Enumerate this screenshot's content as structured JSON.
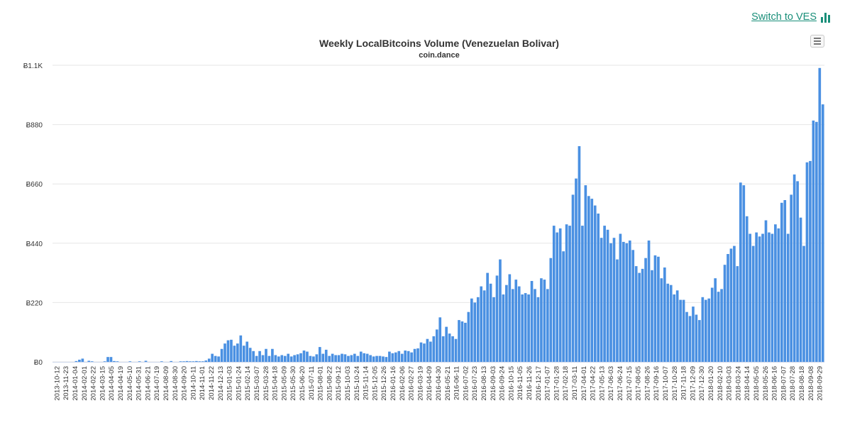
{
  "header": {
    "switch_label": "Switch to VES",
    "switch_icon": "bar-chart-icon",
    "accent": "#1a8f7a"
  },
  "menu": {
    "icon": "hamburger-menu-icon"
  },
  "chart_data": {
    "type": "bar",
    "title": "Weekly LocalBitcoins Volume (Venezuelan Bolivar)",
    "subtitle": "coin.dance",
    "bar_color": "#4a90e2",
    "grid": true,
    "ylim": [
      0,
      1100
    ],
    "yticks": [
      0,
      220,
      440,
      660,
      880,
      1100
    ],
    "ytick_labels": [
      "Ƀ0",
      "Ƀ220",
      "Ƀ440",
      "Ƀ660",
      "Ƀ880",
      "Ƀ1.1K"
    ],
    "xtick_labels": [
      "2013-10-12",
      "2013-11-23",
      "2014-01-04",
      "2014-02-01",
      "2014-02-22",
      "2014-03-15",
      "2014-04-05",
      "2014-04-19",
      "2014-05-10",
      "2014-05-31",
      "2014-06-21",
      "2014-07-19",
      "2014-08-09",
      "2014-08-30",
      "2014-09-20",
      "2014-10-11",
      "2014-11-01",
      "2014-11-22",
      "2014-12-13",
      "2015-01-03",
      "2015-01-24",
      "2015-02-14",
      "2015-03-07",
      "2015-03-28",
      "2015-04-18",
      "2015-05-09",
      "2015-05-30",
      "2015-06-20",
      "2015-07-11",
      "2015-08-01",
      "2015-08-22",
      "2015-09-12",
      "2015-10-03",
      "2015-10-24",
      "2015-11-14",
      "2015-12-05",
      "2015-12-26",
      "2016-01-16",
      "2016-02-06",
      "2016-02-27",
      "2016-03-19",
      "2016-04-09",
      "2016-04-30",
      "2016-05-21",
      "2016-06-11",
      "2016-07-02",
      "2016-07-23",
      "2016-08-13",
      "2016-09-03",
      "2016-09-24",
      "2016-10-15",
      "2016-11-05",
      "2016-11-26",
      "2016-12-17",
      "2017-01-07",
      "2017-01-28",
      "2017-02-18",
      "2017-03-11",
      "2017-04-01",
      "2017-04-22",
      "2017-05-13",
      "2017-06-03",
      "2017-06-24",
      "2017-07-15",
      "2017-08-05",
      "2017-08-26",
      "2017-09-16",
      "2017-10-07",
      "2017-10-28",
      "2017-11-18",
      "2017-12-09",
      "2017-12-30",
      "2018-01-20",
      "2018-02-10",
      "2018-03-03",
      "2018-03-24",
      "2018-04-14",
      "2018-05-05",
      "2018-05-26",
      "2018-06-16",
      "2018-07-07",
      "2018-07-28",
      "2018-08-18",
      "2018-09-08",
      "2018-09-29"
    ],
    "values": [
      0,
      0,
      0,
      0,
      0,
      0,
      0,
      3,
      8,
      12,
      0,
      4,
      2,
      0,
      0,
      0,
      2,
      18,
      18,
      3,
      2,
      0,
      0,
      0,
      2,
      0,
      0,
      2,
      0,
      4,
      0,
      0,
      0,
      0,
      2,
      0,
      0,
      3,
      0,
      0,
      2,
      2,
      3,
      2,
      2,
      3,
      2,
      2,
      5,
      12,
      30,
      22,
      20,
      48,
      68,
      80,
      82,
      60,
      68,
      98,
      60,
      75,
      52,
      40,
      22,
      40,
      25,
      48,
      22,
      48,
      25,
      20,
      25,
      22,
      30,
      20,
      25,
      28,
      32,
      42,
      38,
      22,
      20,
      28,
      55,
      30,
      45,
      22,
      30,
      25,
      25,
      30,
      28,
      22,
      25,
      30,
      22,
      38,
      32,
      30,
      25,
      20,
      22,
      22,
      20,
      18,
      38,
      32,
      35,
      40,
      30,
      42,
      40,
      35,
      48,
      50,
      72,
      68,
      85,
      75,
      95,
      120,
      165,
      95,
      130,
      105,
      95,
      85,
      155,
      150,
      145,
      185,
      235,
      220,
      240,
      280,
      265,
      330,
      290,
      240,
      320,
      380,
      250,
      285,
      325,
      270,
      305,
      280,
      250,
      255,
      250,
      300,
      270,
      240,
      310,
      305,
      270,
      385,
      505,
      480,
      495,
      410,
      510,
      505,
      620,
      680,
      800,
      505,
      655,
      615,
      605,
      580,
      550,
      460,
      505,
      490,
      440,
      460,
      380,
      475,
      445,
      440,
      450,
      415,
      355,
      330,
      345,
      385,
      450,
      340,
      395,
      390,
      310,
      350,
      290,
      285,
      250,
      265,
      230,
      230,
      185,
      170,
      205,
      175,
      155,
      240,
      230,
      235,
      275,
      310,
      260,
      270,
      360,
      400,
      420,
      430,
      355,
      665,
      655,
      540,
      475,
      430,
      480,
      465,
      475,
      525,
      480,
      475,
      510,
      495,
      590,
      600,
      475,
      620,
      695,
      670,
      535,
      430,
      740,
      745,
      895,
      890,
      1090,
      955
    ]
  }
}
